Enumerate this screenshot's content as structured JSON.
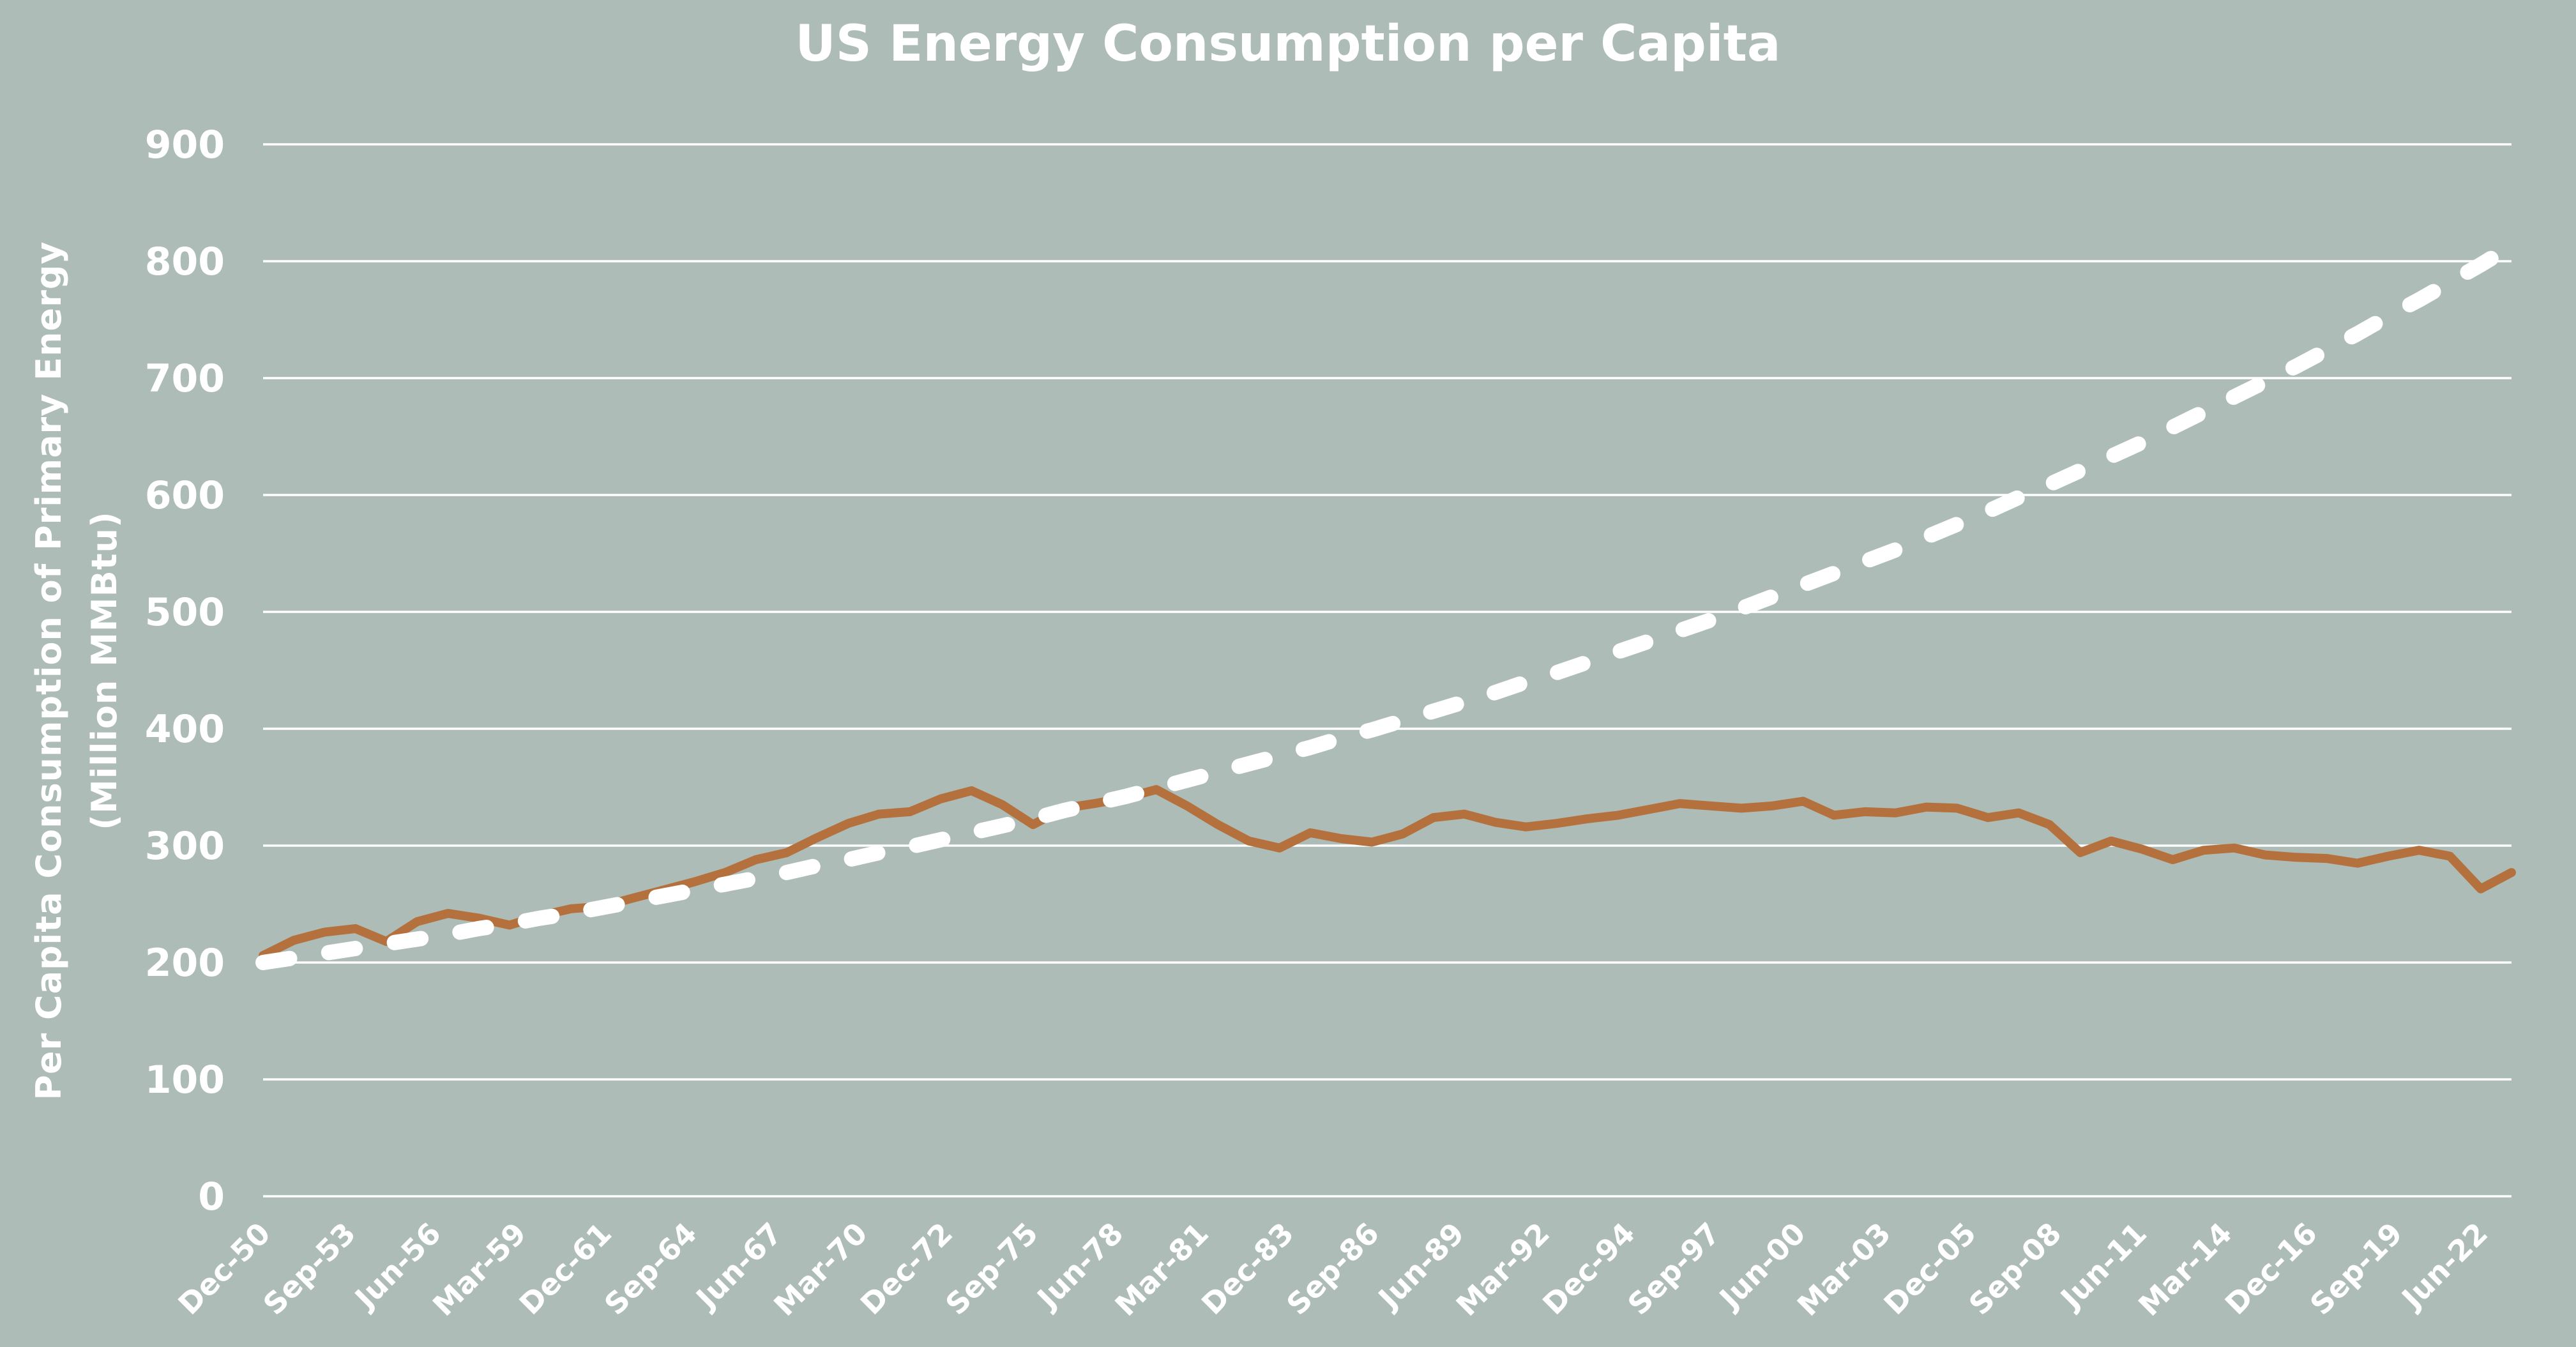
{
  "title": "US Energy Consumption per Capita",
  "y_axis": {
    "label_line1": "Per Capita Consumption of Primary Energy",
    "label_line2": "(Million MMBtu)",
    "ticks": [
      900,
      800,
      700,
      600,
      500,
      400,
      300,
      200,
      100,
      0
    ]
  },
  "x_axis": {
    "labels": [
      "Dec-50",
      "Sep-53",
      "Jun-56",
      "Mar-59",
      "Dec-61",
      "Sep-64",
      "Jun-67",
      "Mar-70",
      "Dec-72",
      "Sep-75",
      "Jun-78",
      "Mar-81",
      "Dec-83",
      "Sep-86",
      "Jun-89",
      "Mar-92",
      "Dec-94",
      "Sep-97",
      "Jun-00",
      "Mar-03",
      "Dec-05",
      "Sep-08",
      "Jun-11",
      "Mar-14",
      "Dec-16",
      "Sep-19",
      "Jun-22"
    ]
  },
  "colors": {
    "background": "#adbcb6",
    "solid_line": "#b4713e",
    "dashed_line": "#ffffff",
    "grid": "#ffffff",
    "text": "#ffffff"
  },
  "chart_data": {
    "type": "line",
    "title": "US Energy Consumption per Capita",
    "ylabel": "Per Capita Consumption of Primary Energy (Million MMBtu)",
    "ylim": [
      0,
      900
    ],
    "grid": "horizontal",
    "legend_position": "none",
    "x_tick_labels": [
      "Dec-50",
      "Sep-53",
      "Jun-56",
      "Mar-59",
      "Dec-61",
      "Sep-64",
      "Jun-67",
      "Mar-70",
      "Dec-72",
      "Sep-75",
      "Jun-78",
      "Mar-81",
      "Dec-83",
      "Sep-86",
      "Jun-89",
      "Mar-92",
      "Dec-94",
      "Sep-97",
      "Jun-00",
      "Mar-03",
      "Dec-05",
      "Sep-08",
      "Jun-11",
      "Mar-14",
      "Dec-16",
      "Sep-19",
      "Jun-22"
    ],
    "years": [
      1950,
      1951,
      1952,
      1953,
      1954,
      1955,
      1956,
      1957,
      1958,
      1959,
      1960,
      1961,
      1962,
      1963,
      1964,
      1965,
      1966,
      1967,
      1968,
      1969,
      1970,
      1971,
      1972,
      1973,
      1974,
      1975,
      1976,
      1977,
      1978,
      1979,
      1980,
      1981,
      1982,
      1983,
      1984,
      1985,
      1986,
      1987,
      1988,
      1989,
      1990,
      1991,
      1992,
      1993,
      1994,
      1995,
      1996,
      1997,
      1998,
      1999,
      2000,
      2001,
      2002,
      2003,
      2004,
      2005,
      2006,
      2007,
      2008,
      2009,
      2010,
      2011,
      2012,
      2013,
      2014,
      2015,
      2016,
      2017,
      2018,
      2019,
      2020,
      2021,
      2022,
      2023
    ],
    "series": [
      {
        "name": "solid brown line (actual per capita consumption)",
        "style": "solid",
        "color": "#b4713e",
        "values": [
          206,
          219,
          226,
          229,
          218,
          235,
          242,
          238,
          232,
          240,
          246,
          248,
          255,
          262,
          269,
          277,
          288,
          294,
          307,
          319,
          327,
          329,
          340,
          347,
          335,
          318,
          332,
          336,
          341,
          348,
          334,
          318,
          304,
          298,
          311,
          306,
          303,
          310,
          324,
          327,
          320,
          316,
          319,
          323,
          326,
          331,
          336,
          334,
          332,
          334,
          338,
          326,
          329,
          328,
          333,
          332,
          324,
          328,
          318,
          294,
          304,
          297,
          288,
          296,
          298,
          292,
          290,
          289,
          285,
          291,
          296,
          291,
          263,
          277
        ]
      },
      {
        "name": "dashed white line (continued growth trend)",
        "style": "dashed",
        "color": "#ffffff",
        "values": [
          200,
          204,
          208,
          212,
          216,
          220,
          224,
          229,
          233,
          238,
          242,
          247,
          252,
          257,
          262,
          267,
          272,
          277,
          283,
          288,
          294,
          299,
          305,
          311,
          317,
          323,
          330,
          336,
          342,
          349,
          356,
          363,
          370,
          377,
          384,
          392,
          399,
          407,
          415,
          423,
          431,
          440,
          448,
          457,
          466,
          475,
          484,
          493,
          503,
          513,
          523,
          533,
          543,
          553,
          564,
          575,
          586,
          598,
          609,
          621,
          633,
          645,
          658,
          671,
          684,
          697,
          710,
          724,
          738,
          753,
          767,
          782,
          797,
          813
        ]
      }
    ]
  }
}
